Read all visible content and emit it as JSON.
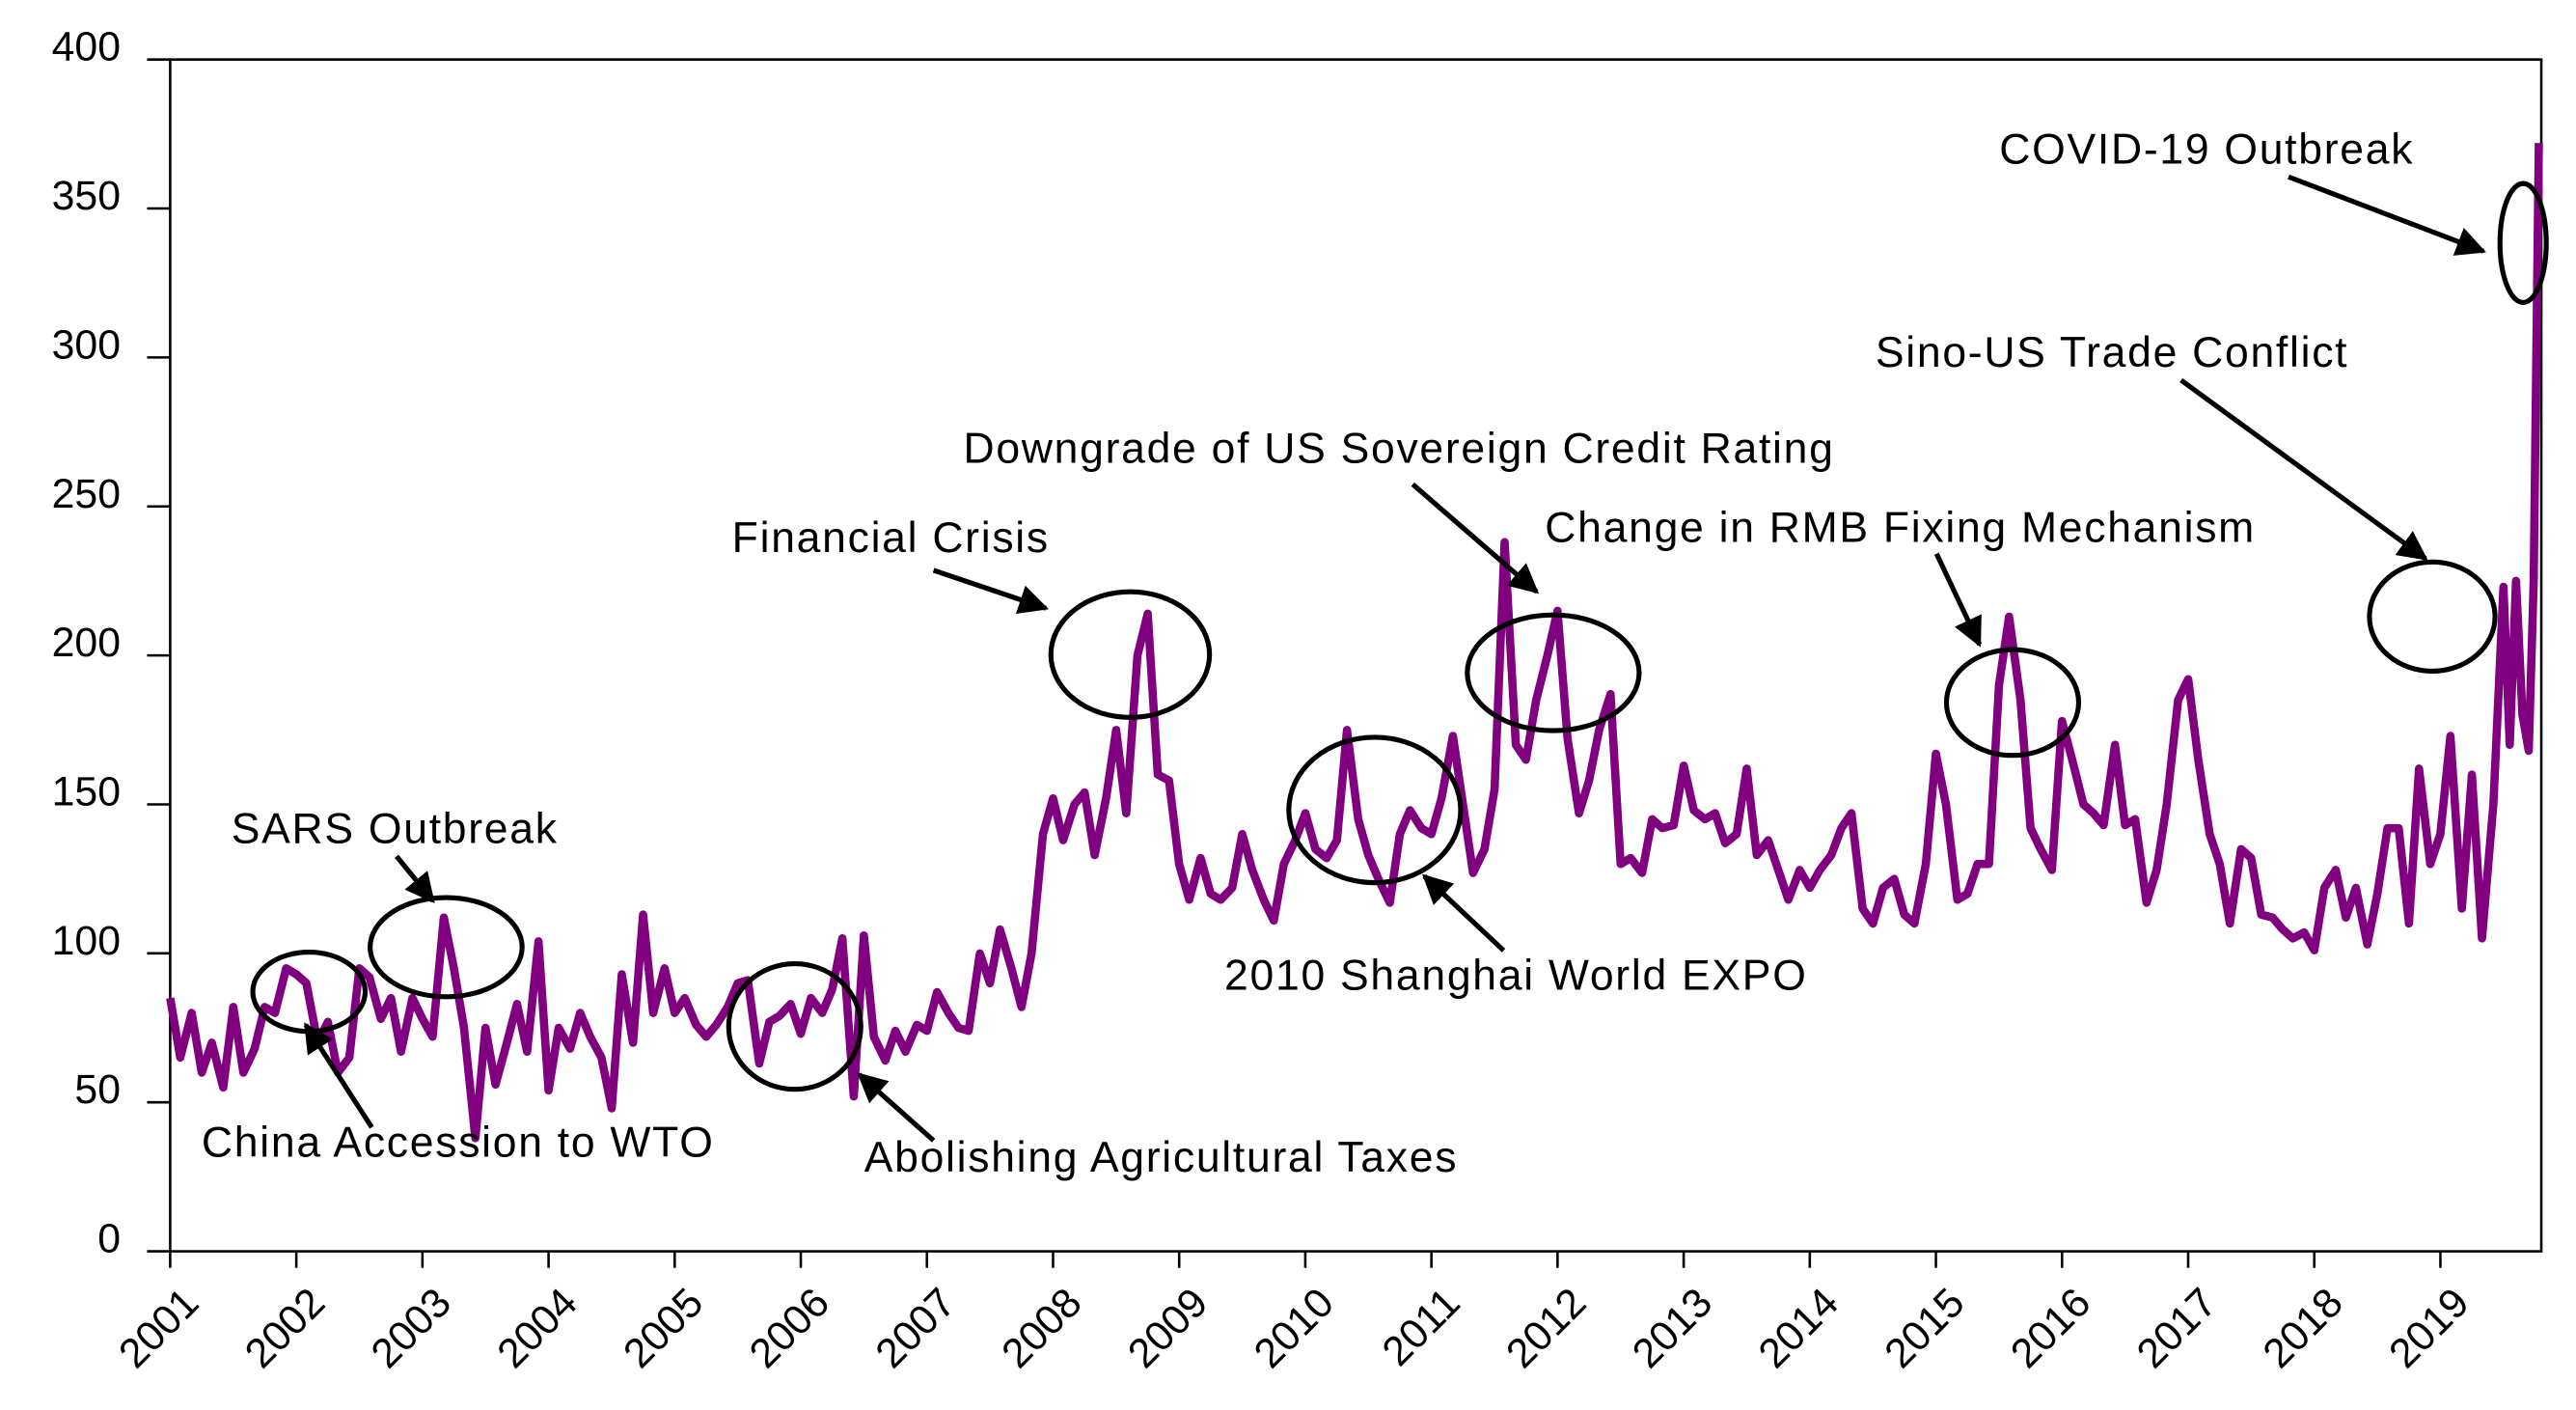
{
  "chart_data": {
    "type": "line",
    "x": [
      2001.0,
      2001.08,
      2001.17,
      2001.25,
      2001.33,
      2001.42,
      2001.5,
      2001.58,
      2001.67,
      2001.75,
      2001.83,
      2001.92,
      2002.0,
      2002.08,
      2002.17,
      2002.25,
      2002.33,
      2002.42,
      2002.5,
      2002.58,
      2002.67,
      2002.75,
      2002.83,
      2002.92,
      2003.0,
      2003.08,
      2003.17,
      2003.25,
      2003.33,
      2003.42,
      2003.5,
      2003.58,
      2003.67,
      2003.75,
      2003.83,
      2003.92,
      2004.0,
      2004.08,
      2004.17,
      2004.25,
      2004.33,
      2004.42,
      2004.5,
      2004.58,
      2004.67,
      2004.75,
      2004.83,
      2004.92,
      2005.0,
      2005.08,
      2005.17,
      2005.25,
      2005.33,
      2005.42,
      2005.5,
      2005.58,
      2005.67,
      2005.75,
      2005.83,
      2005.92,
      2006.0,
      2006.08,
      2006.17,
      2006.25,
      2006.33,
      2006.42,
      2006.5,
      2006.58,
      2006.67,
      2006.75,
      2006.83,
      2006.92,
      2007.0,
      2007.08,
      2007.17,
      2007.25,
      2007.33,
      2007.42,
      2007.5,
      2007.58,
      2007.67,
      2007.75,
      2007.83,
      2007.92,
      2008.0,
      2008.08,
      2008.17,
      2008.25,
      2008.33,
      2008.42,
      2008.5,
      2008.58,
      2008.67,
      2008.75,
      2008.83,
      2008.92,
      2009.0,
      2009.08,
      2009.17,
      2009.25,
      2009.33,
      2009.42,
      2009.5,
      2009.58,
      2009.67,
      2009.75,
      2009.83,
      2009.92,
      2010.0,
      2010.08,
      2010.17,
      2010.25,
      2010.33,
      2010.42,
      2010.5,
      2010.58,
      2010.67,
      2010.75,
      2010.83,
      2010.92,
      2011.0,
      2011.08,
      2011.17,
      2011.25,
      2011.33,
      2011.42,
      2011.5,
      2011.58,
      2011.67,
      2011.75,
      2011.83,
      2011.92,
      2012.0,
      2012.08,
      2012.17,
      2012.25,
      2012.33,
      2012.42,
      2012.5,
      2012.58,
      2012.67,
      2012.75,
      2012.83,
      2012.92,
      2013.0,
      2013.08,
      2013.17,
      2013.25,
      2013.33,
      2013.42,
      2013.5,
      2013.58,
      2013.67,
      2013.75,
      2013.83,
      2013.92,
      2014.0,
      2014.08,
      2014.17,
      2014.25,
      2014.33,
      2014.42,
      2014.5,
      2014.58,
      2014.67,
      2014.75,
      2014.83,
      2014.92,
      2015.0,
      2015.08,
      2015.17,
      2015.25,
      2015.33,
      2015.42,
      2015.5,
      2015.58,
      2015.67,
      2015.75,
      2015.83,
      2015.92,
      2016.0,
      2016.08,
      2016.17,
      2016.25,
      2016.33,
      2016.42,
      2016.5,
      2016.58,
      2016.67,
      2016.75,
      2016.83,
      2016.92,
      2017.0,
      2017.08,
      2017.17,
      2017.25,
      2017.33,
      2017.42,
      2017.5,
      2017.58,
      2017.67,
      2017.75,
      2017.83,
      2017.92,
      2018.0,
      2018.08,
      2018.17,
      2018.25,
      2018.33,
      2018.42,
      2018.5,
      2018.58,
      2018.67,
      2018.75,
      2018.83,
      2018.92,
      2019.0,
      2019.08,
      2019.17,
      2019.25,
      2019.33,
      2019.42,
      2019.5,
      2019.55,
      2019.6,
      2019.65,
      2019.7,
      2019.74,
      2019.78
    ],
    "series": [
      {
        "color": "#800080",
        "values": [
          85,
          65,
          80,
          60,
          70,
          55,
          82,
          60,
          68,
          82,
          80,
          95,
          93,
          90,
          70,
          77,
          60,
          65,
          95,
          92,
          78,
          85,
          67,
          85,
          78,
          72,
          112,
          95,
          75,
          38,
          75,
          56,
          70,
          83,
          67,
          104,
          54,
          75,
          68,
          80,
          72,
          65,
          48,
          93,
          70,
          113,
          80,
          95,
          80,
          85,
          76,
          72,
          76,
          82,
          90,
          91,
          63,
          77,
          79,
          83,
          73,
          85,
          80,
          88,
          105,
          52,
          106,
          72,
          64,
          74,
          67,
          76,
          74,
          87,
          80,
          75,
          74,
          100,
          90,
          108,
          95,
          82,
          100,
          140,
          152,
          138,
          150,
          154,
          133,
          152,
          175,
          147,
          200,
          214,
          160,
          158,
          130,
          118,
          132,
          120,
          118,
          122,
          140,
          128,
          118,
          111,
          130,
          138,
          147,
          135,
          132,
          138,
          175,
          145,
          133,
          125,
          117,
          140,
          148,
          142,
          140,
          152,
          173,
          150,
          127,
          135,
          155,
          238,
          170,
          165,
          185,
          200,
          215,
          172,
          147,
          158,
          175,
          187,
          130,
          132,
          127,
          145,
          142,
          143,
          163,
          148,
          145,
          147,
          137,
          140,
          162,
          133,
          138,
          128,
          118,
          128,
          122,
          128,
          133,
          142,
          147,
          115,
          110,
          122,
          125,
          113,
          110,
          130,
          167,
          150,
          118,
          120,
          130,
          130,
          190,
          213,
          185,
          142,
          135,
          128,
          178,
          165,
          150,
          147,
          143,
          170,
          143,
          145,
          117,
          128,
          150,
          185,
          192,
          165,
          140,
          130,
          110,
          135,
          132,
          113,
          112,
          108,
          105,
          107,
          101,
          122,
          128,
          112,
          122,
          103,
          120,
          142,
          142,
          110,
          162,
          130,
          140,
          173,
          115,
          160,
          105,
          150,
          223,
          170,
          225,
          180,
          168,
          225,
          372
        ]
      }
    ],
    "xlim": [
      2001,
      2019.8
    ],
    "xticks": [
      2001,
      2002,
      2003,
      2004,
      2005,
      2006,
      2007,
      2008,
      2009,
      2010,
      2011,
      2012,
      2013,
      2014,
      2015,
      2016,
      2017,
      2018,
      2019
    ],
    "ylim": [
      0,
      400
    ],
    "yticks": [
      0,
      50,
      100,
      150,
      200,
      250,
      300,
      350,
      400
    ],
    "annotations": [
      "SARS Outbreak",
      "China Accession to WTO",
      "Abolishing Agricultural Taxes",
      "Financial Crisis",
      "Downgrade of US Sovereign Credit Rating",
      "2010 Shanghai World EXPO",
      "Change in RMB Fixing Mechanism",
      "Sino-US Trade Conflict",
      "COVID-19 Outbreak"
    ]
  }
}
